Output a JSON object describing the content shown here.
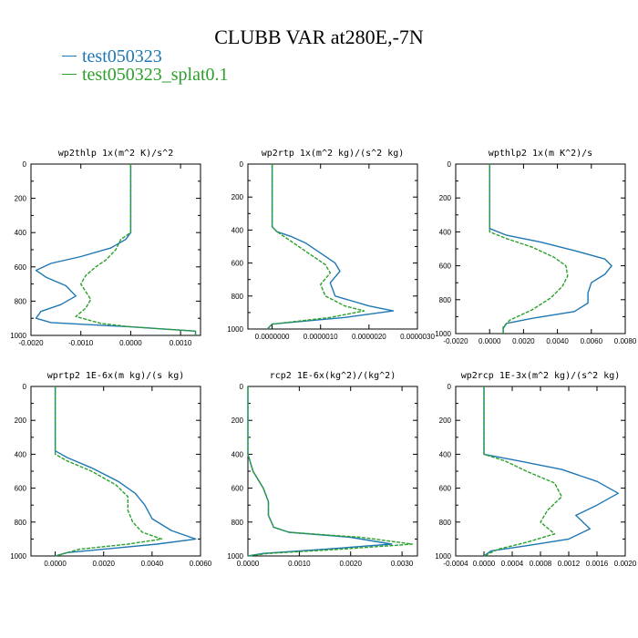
{
  "title": "CLUBB VAR at280E,-7N",
  "legend": [
    {
      "label": "test050323",
      "color": "#1f77b4"
    },
    {
      "label": "test050323_splat0.1",
      "color": "#2ca02c"
    }
  ],
  "chart_data": [
    {
      "type": "line",
      "title": "wp2thlp  1x(m^2 K)/s^2",
      "xlim": [
        -0.002,
        0.0014
      ],
      "xticks": [
        -0.002,
        -0.001,
        0.0,
        0.001
      ],
      "xtick_labels": [
        "-0.0020",
        "-0.0010",
        "0.0000",
        "0.0010"
      ],
      "ylim": [
        0,
        1000
      ],
      "yticks": [
        0,
        200,
        400,
        600,
        800,
        1000
      ],
      "ytick_labels": [
        "0",
        "200",
        "400",
        "600",
        "800",
        "1000"
      ],
      "y_inverted": true,
      "series": [
        {
          "name": "test050323",
          "color": "#1f77b4",
          "dashed": false,
          "x": [
            0.0,
            0.0,
            0.0,
            -0.0001,
            -0.0004,
            -0.001,
            -0.0016,
            -0.0019,
            -0.0017,
            -0.0013,
            -0.0011,
            -0.0014,
            -0.0018,
            -0.0019,
            -0.0016,
            0.0,
            0.0013,
            0.0013
          ],
          "y": [
            0,
            200,
            400,
            440,
            490,
            540,
            580,
            620,
            660,
            710,
            770,
            820,
            860,
            900,
            925,
            950,
            975,
            1000
          ]
        },
        {
          "name": "test050323_splat0.1",
          "color": "#2ca02c",
          "dashed": true,
          "x": [
            0.0,
            0.0,
            0.0,
            -0.0002,
            -0.0003,
            -0.0005,
            -0.0007,
            -0.0009,
            -0.001,
            -0.0008,
            -0.0009,
            -0.0011,
            -0.0006,
            0.0,
            0.0013,
            0.0013
          ],
          "y": [
            0,
            200,
            400,
            440,
            500,
            560,
            600,
            650,
            700,
            790,
            840,
            890,
            930,
            950,
            975,
            1000
          ]
        }
      ]
    },
    {
      "type": "line",
      "title": "wp2rtp  1x(m^2 kg)/(s^2 kg)",
      "xlim": [
        -5e-07,
        3e-06
      ],
      "xticks": [
        0.0,
        1e-06,
        2e-06,
        3e-06
      ],
      "xtick_labels": [
        "0.0000000",
        "0.0000010",
        "0.0000020",
        "0.0000030"
      ],
      "ylim": [
        0,
        1000
      ],
      "yticks": [
        0,
        200,
        400,
        600,
        800,
        1000
      ],
      "ytick_labels": [
        "0",
        "200",
        "400",
        "600",
        "800",
        "1000"
      ],
      "y_inverted": true,
      "series": [
        {
          "name": "test050323",
          "color": "#1f77b4",
          "dashed": false,
          "x": [
            0.0,
            0.0,
            0.0,
            1e-07,
            4e-07,
            7e-07,
            1e-06,
            1.3e-06,
            1.4e-06,
            1.2e-06,
            1.3e-06,
            2e-06,
            2.5e-06,
            1.5e-06,
            0.0,
            -1e-07
          ],
          "y": [
            0,
            200,
            380,
            410,
            440,
            480,
            540,
            600,
            650,
            720,
            800,
            860,
            890,
            930,
            970,
            1000
          ]
        },
        {
          "name": "test050323_splat0.1",
          "color": "#2ca02c",
          "dashed": true,
          "x": [
            0.0,
            0.0,
            0.0,
            1e-07,
            3e-07,
            5e-07,
            8e-07,
            1.1e-06,
            1.2e-06,
            1e-06,
            1.1e-06,
            1.5e-06,
            1.9e-06,
            1.2e-06,
            0.0,
            -1e-07
          ],
          "y": [
            0,
            200,
            380,
            410,
            450,
            490,
            550,
            610,
            660,
            730,
            800,
            860,
            890,
            930,
            970,
            1000
          ]
        }
      ]
    },
    {
      "type": "line",
      "title": "wpthlp2  1x(m K^2)/s",
      "xlim": [
        -0.002,
        0.008
      ],
      "xticks": [
        -0.002,
        0.0,
        0.002,
        0.004,
        0.006,
        0.008
      ],
      "xtick_labels": [
        "-0.0020",
        "0.0000",
        "0.0020",
        "0.0040",
        "0.0060",
        "0.0080"
      ],
      "ylim": [
        0,
        1000
      ],
      "yticks": [
        0,
        200,
        400,
        600,
        800,
        1000
      ],
      "ytick_labels": [
        "0",
        "200",
        "400",
        "600",
        "800",
        "1000"
      ],
      "y_inverted": true,
      "series": [
        {
          "name": "test050323",
          "color": "#1f77b4",
          "dashed": false,
          "x": [
            0.0,
            0.0,
            0.0,
            0.001,
            0.003,
            0.005,
            0.0068,
            0.0072,
            0.0068,
            0.006,
            0.0058,
            0.0058,
            0.005,
            0.0025,
            0.001,
            0.0008,
            0.0008
          ],
          "y": [
            0,
            200,
            380,
            420,
            460,
            510,
            560,
            600,
            650,
            700,
            760,
            820,
            870,
            910,
            940,
            970,
            1000
          ]
        },
        {
          "name": "test050323_splat0.1",
          "color": "#2ca02c",
          "dashed": true,
          "x": [
            0.0,
            0.0,
            0.0,
            0.001,
            0.0025,
            0.0038,
            0.0045,
            0.0046,
            0.0043,
            0.0036,
            0.0025,
            0.0012,
            0.0008,
            0.0008
          ],
          "y": [
            0,
            200,
            400,
            440,
            490,
            550,
            600,
            660,
            720,
            790,
            860,
            920,
            960,
            1000
          ]
        }
      ]
    },
    {
      "type": "line",
      "title": "wprtp2  1E-6x(m kg)/(s kg)",
      "xlim": [
        -0.001,
        0.006
      ],
      "xticks": [
        0.0,
        0.002,
        0.004,
        0.006
      ],
      "xtick_labels": [
        "0.0000",
        "0.0020",
        "0.0040",
        "0.0060"
      ],
      "ylim": [
        0,
        1000
      ],
      "yticks": [
        0,
        200,
        400,
        600,
        800,
        1000
      ],
      "ytick_labels": [
        "0",
        "200",
        "400",
        "600",
        "800",
        "1000"
      ],
      "y_inverted": true,
      "series": [
        {
          "name": "test050323",
          "color": "#1f77b4",
          "dashed": false,
          "x": [
            0.0,
            0.0,
            0.0,
            0.0005,
            0.0015,
            0.0026,
            0.0033,
            0.0037,
            0.004,
            0.0048,
            0.0058,
            0.0042,
            0.002,
            0.0005,
            0.0
          ],
          "y": [
            0,
            200,
            380,
            420,
            480,
            560,
            630,
            700,
            780,
            850,
            900,
            930,
            960,
            980,
            1000
          ]
        },
        {
          "name": "test050323_splat0.1",
          "color": "#2ca02c",
          "dashed": true,
          "x": [
            0.0,
            0.0,
            0.0,
            0.0005,
            0.0015,
            0.0025,
            0.003,
            0.003,
            0.0032,
            0.0036,
            0.0044,
            0.003,
            0.001,
            0.0
          ],
          "y": [
            0,
            200,
            400,
            440,
            500,
            580,
            650,
            730,
            800,
            860,
            900,
            930,
            960,
            1000
          ]
        }
      ]
    },
    {
      "type": "line",
      "title": "rcp2  1E-6x(kg^2)/(kg^2)",
      "xlim": [
        0.0,
        0.0033
      ],
      "xticks": [
        0.0,
        0.001,
        0.002,
        0.003
      ],
      "xtick_labels": [
        "0.0000",
        "0.0010",
        "0.0020",
        "0.0030"
      ],
      "ylim": [
        0,
        1000
      ],
      "yticks": [
        0,
        200,
        400,
        600,
        800,
        1000
      ],
      "ytick_labels": [
        "0",
        "200",
        "400",
        "600",
        "800",
        "1000"
      ],
      "y_inverted": true,
      "series": [
        {
          "name": "test050323",
          "color": "#1f77b4",
          "dashed": false,
          "x": [
            0.0,
            0.0,
            0.0001,
            0.0003,
            0.0004,
            0.0004,
            0.0005,
            0.0008,
            0.002,
            0.0028,
            0.0015,
            0.0003,
            0.0
          ],
          "y": [
            0,
            400,
            500,
            600,
            680,
            760,
            830,
            860,
            890,
            930,
            960,
            985,
            1000
          ]
        },
        {
          "name": "test050323_splat0.1",
          "color": "#2ca02c",
          "dashed": true,
          "x": [
            0.0,
            0.0,
            0.0001,
            0.0003,
            0.0004,
            0.0004,
            0.0005,
            0.0008,
            0.0022,
            0.0032,
            0.0018,
            0.0004,
            0.0
          ],
          "y": [
            0,
            400,
            500,
            600,
            680,
            760,
            830,
            860,
            890,
            930,
            960,
            985,
            1000
          ]
        }
      ]
    },
    {
      "type": "line",
      "title": "wp2rcp  1E-3x(m^2 kg)/(s^2 kg)",
      "xlim": [
        -0.0004,
        0.002
      ],
      "xticks": [
        -0.0004,
        0.0,
        0.0004,
        0.0008,
        0.0012,
        0.0016,
        0.002
      ],
      "xtick_labels": [
        "-0.0004",
        "0.0000",
        "0.0004",
        "0.0008",
        "0.0012",
        "0.0016",
        "0.0020"
      ],
      "ylim": [
        0,
        1000
      ],
      "yticks": [
        0,
        200,
        400,
        600,
        800,
        1000
      ],
      "ytick_labels": [
        "0",
        "200",
        "400",
        "600",
        "800",
        "1000"
      ],
      "y_inverted": true,
      "series": [
        {
          "name": "test050323",
          "color": "#1f77b4",
          "dashed": false,
          "x": [
            0.0,
            0.0,
            0.0,
            0.0005,
            0.0011,
            0.0016,
            0.0019,
            0.0016,
            0.0013,
            0.0015,
            0.0012,
            0.0006,
            0.0001,
            0.0
          ],
          "y": [
            0,
            200,
            400,
            440,
            490,
            560,
            630,
            700,
            760,
            840,
            900,
            940,
            970,
            1000
          ]
        },
        {
          "name": "test050323_splat0.1",
          "color": "#2ca02c",
          "dashed": true,
          "x": [
            0.0,
            0.0,
            0.0,
            0.0003,
            0.0006,
            0.001,
            0.0011,
            0.0009,
            0.0008,
            0.001,
            0.0006,
            0.0002,
            0.0
          ],
          "y": [
            0,
            200,
            400,
            440,
            500,
            570,
            650,
            730,
            800,
            870,
            920,
            960,
            1000
          ]
        }
      ]
    }
  ]
}
